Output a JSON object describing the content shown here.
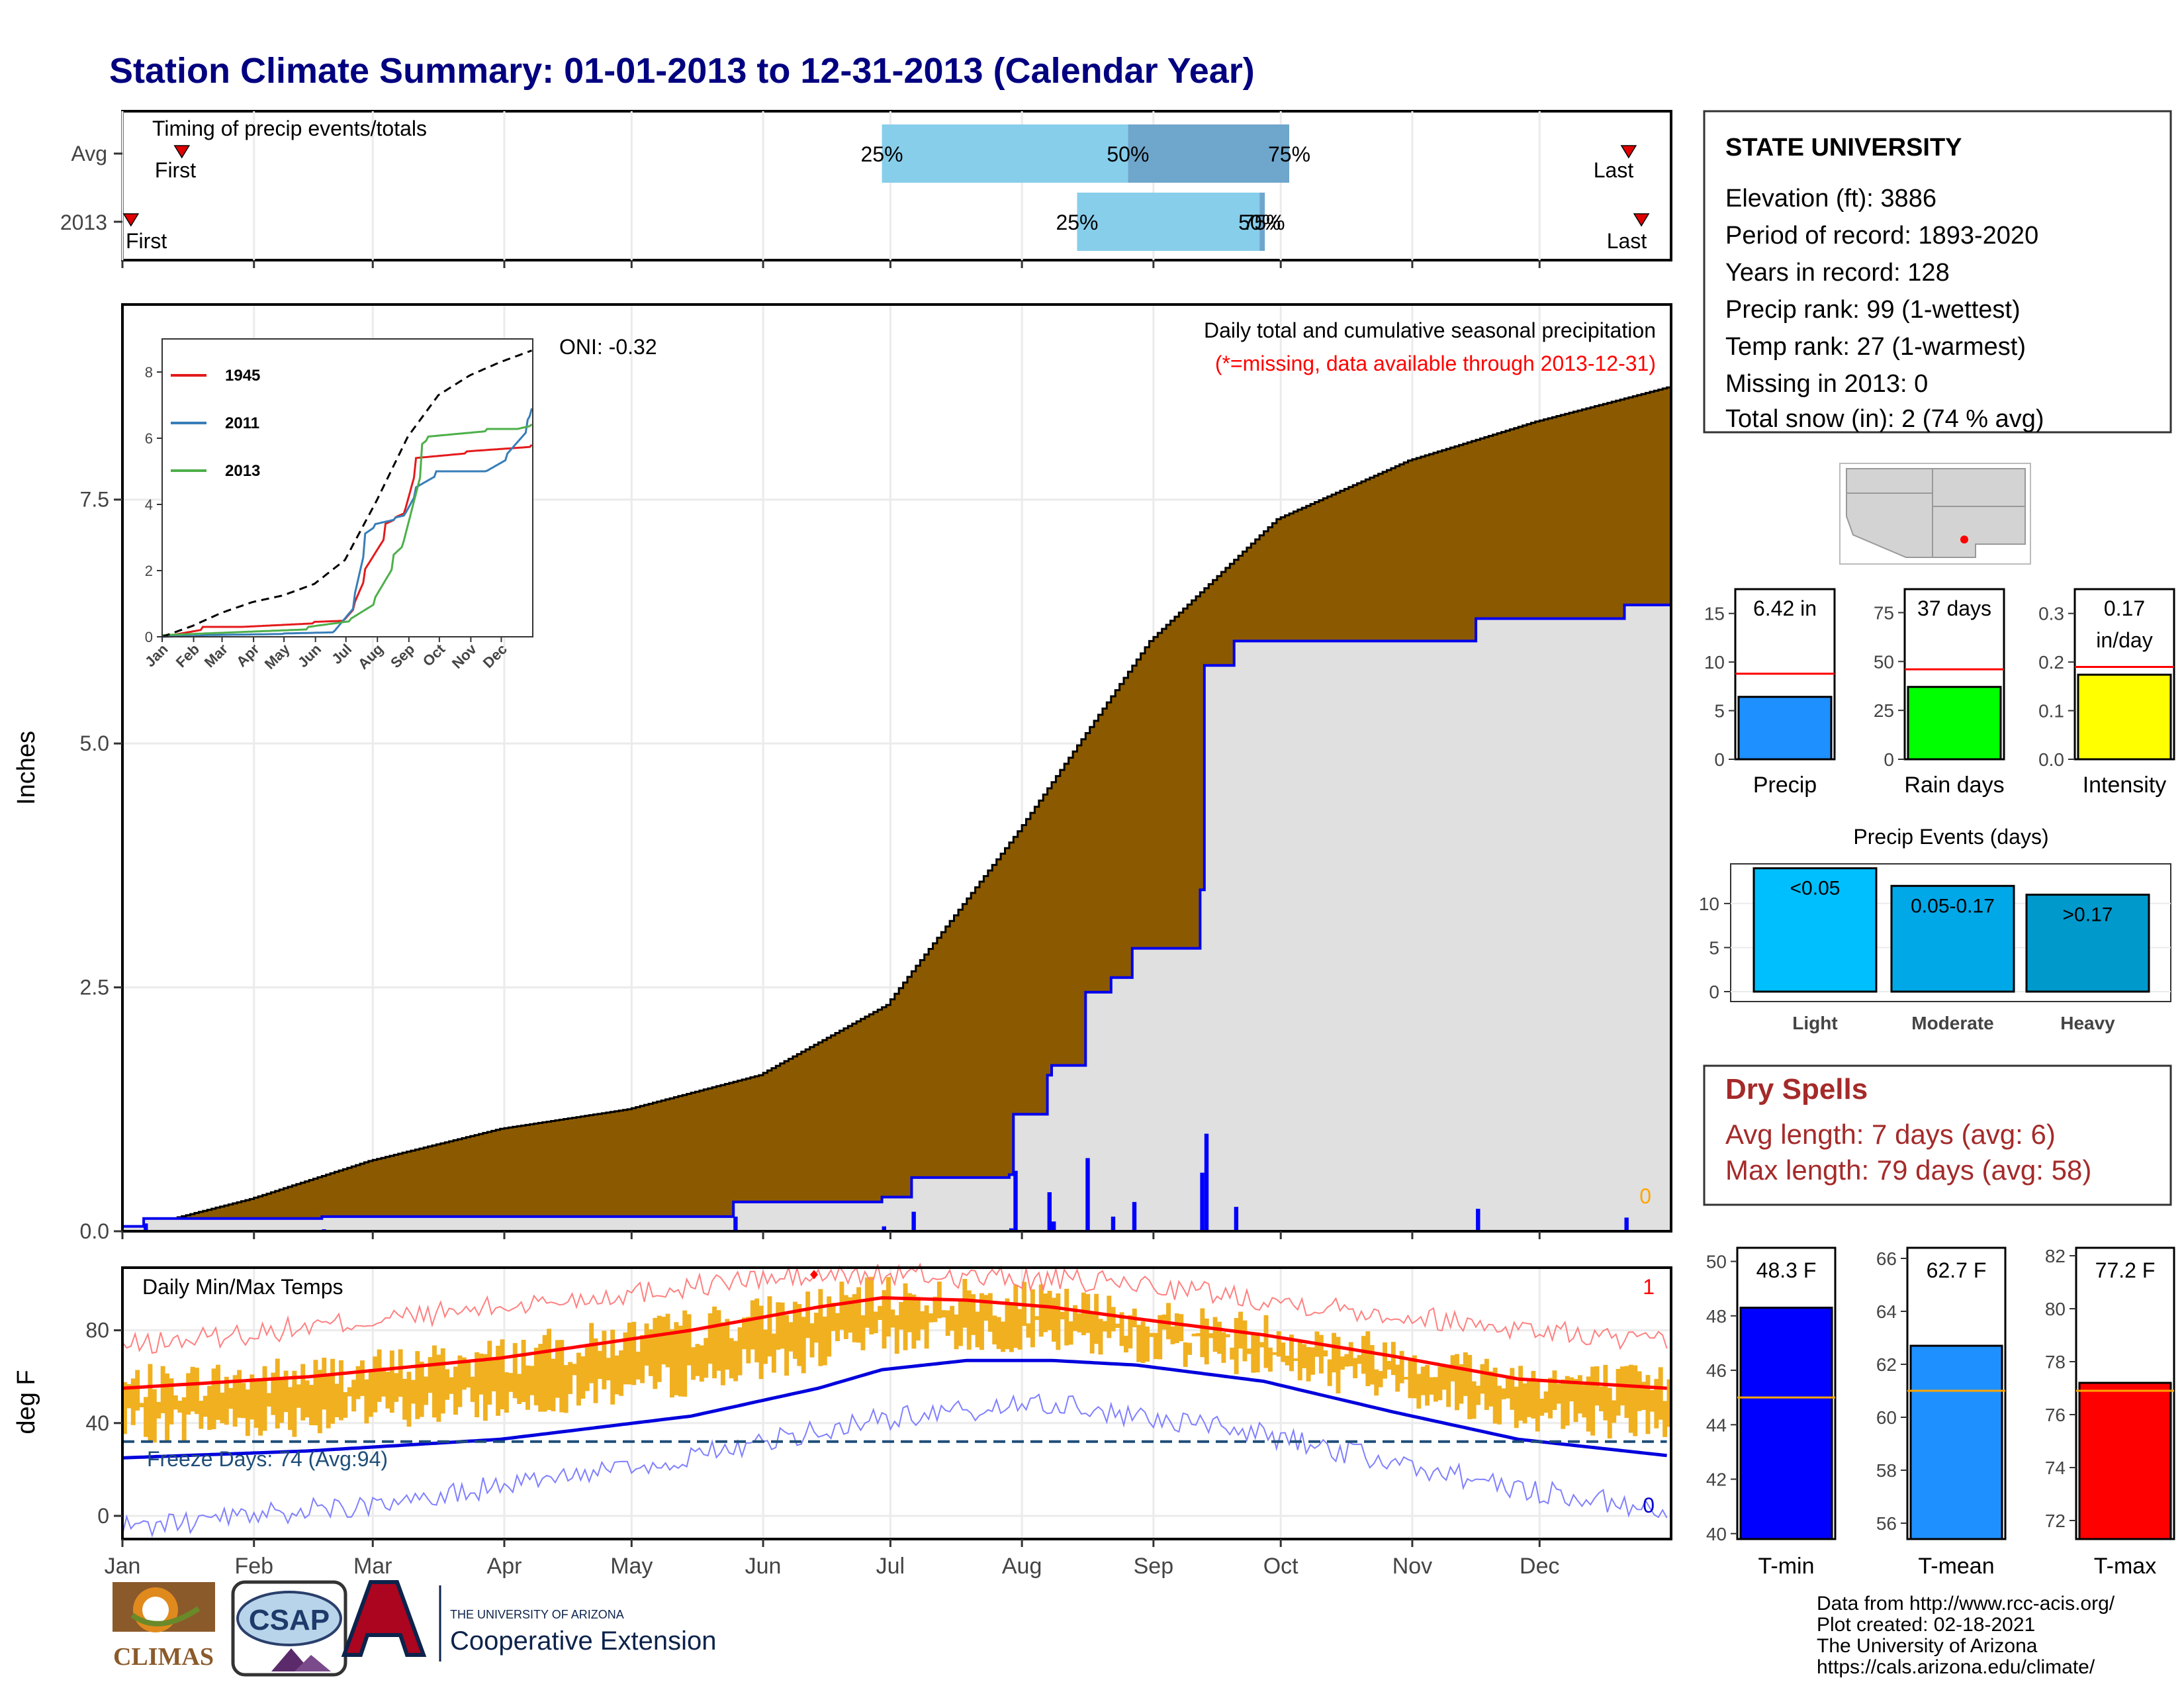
{
  "page": {
    "title": "Station Climate Summary: 01-01-2013 to 12-31-2013 (Calendar Year)",
    "title_color": "#000080"
  },
  "timing_panel": {
    "title": "Timing of precip events/totals",
    "rows": [
      "Avg",
      "2013"
    ],
    "avg": {
      "first_doy": 15,
      "last_doy": 356,
      "p25_doy": 180,
      "p50_doy": 238,
      "p75_doy": 276,
      "first_label": "First",
      "last_label": "Last",
      "labels": [
        "25%",
        "50%",
        "75%"
      ]
    },
    "y2013": {
      "first_doy": 3,
      "last_doy": 359,
      "p25_doy": 226,
      "p50_doy": 269,
      "p75_doy": 270,
      "first_label": "First",
      "last_label": "Last",
      "labels": [
        "25%",
        "50%",
        "75%"
      ]
    },
    "colors": {
      "light": "#87CEEB",
      "dark": "#6fa6cc",
      "marker": "#e00000"
    }
  },
  "precip_panel": {
    "ylabel": "Inches",
    "yticks": [
      "0.0",
      "2.5",
      "5.0",
      "7.5"
    ],
    "ylim": [
      0,
      9.5
    ],
    "oni": "ONI: -0.32",
    "subtitle": "Daily total and cumulative seasonal precipitation",
    "missing_note": "(*=missing, data available through 2013-12-31)",
    "missing_count": "0",
    "colors": {
      "avg_fill": "#8B5A00",
      "current_fill": "#e0e0e0",
      "current_line": "#0000ee",
      "bars": "#0000ff",
      "note": "#ff0000",
      "count": "#ffa500"
    }
  },
  "inset": {
    "yticks": [
      "0",
      "2",
      "4",
      "6",
      "8"
    ],
    "xticks": [
      "Jan",
      "Feb",
      "Mar",
      "Apr",
      "May",
      "Jun",
      "Jul",
      "Aug",
      "Sep",
      "Oct",
      "Nov",
      "Dec"
    ],
    "legend": [
      "1945",
      "2011",
      "2013"
    ],
    "colors": [
      "#e41a1c",
      "#377eb8",
      "#4daf4a"
    ]
  },
  "temp_panel": {
    "ylabel": "deg F",
    "title": "Daily Min/Max Temps",
    "yticks": [
      "0",
      "40",
      "80"
    ],
    "freeze_label": "Freeze Days: 74 (Avg:94)",
    "record_high_count": "1",
    "record_low_count": "0",
    "xticks": [
      "Jan",
      "Feb",
      "Mar",
      "Apr",
      "May",
      "Jun",
      "Jul",
      "Aug",
      "Sep",
      "Oct",
      "Nov",
      "Dec"
    ],
    "colors": {
      "bars": "#f0b020",
      "avg_max": "#ff0000",
      "avg_min": "#0000dd",
      "rec_max": "#ff8080",
      "rec_min": "#8080ff",
      "freeze": "#1f4e79"
    }
  },
  "station_box": {
    "name": "STATE UNIVERSITY",
    "lines": [
      "Elevation (ft): 3886",
      "Period of record: 1893-2020",
      "Years in record: 128",
      "Precip rank: 99 (1-wettest)",
      "Temp rank: 27 (1-warmest)",
      "Missing in 2013: 0",
      "Total snow (in): 2 (74 % avg)"
    ]
  },
  "mini_bars": [
    {
      "label": "Precip",
      "value_text": "6.42 in",
      "value": 6.42,
      "avg": 8.8,
      "ylim": [
        0,
        17.5
      ],
      "yticks": [
        "0",
        "5",
        "10",
        "15"
      ],
      "tickvals": [
        0,
        5,
        10,
        15
      ],
      "color": "#1e90ff"
    },
    {
      "label": "Rain days",
      "value_text": "37 days",
      "value": 37,
      "avg": 46,
      "ylim": [
        0,
        87
      ],
      "yticks": [
        "0",
        "25",
        "50",
        "75"
      ],
      "tickvals": [
        0,
        25,
        50,
        75
      ],
      "color": "#00ff00"
    },
    {
      "label": "Intensity",
      "value_text": "0.17 in/day",
      "value": 0.174,
      "avg": 0.19,
      "ylim": [
        0,
        0.35
      ],
      "yticks": [
        "0.0",
        "0.1",
        "0.2",
        "0.3"
      ],
      "tickvals": [
        0,
        0.1,
        0.2,
        0.3
      ],
      "color": "#ffff00"
    }
  ],
  "precip_events": {
    "title": "Precip Events (days)",
    "categories": [
      "Light",
      "Moderate",
      "Heavy"
    ],
    "labels": [
      "<0.05",
      "0.05-0.17",
      ">0.17"
    ],
    "values": [
      14,
      12,
      11
    ],
    "yticks": [
      "0",
      "5",
      "10"
    ],
    "colors": [
      "#00bfff",
      "#00a8e8",
      "#0099cc"
    ]
  },
  "dry_spells": {
    "title": "Dry Spells",
    "avg_line": "Avg length: 7 days (avg: 6)",
    "max_line": "Max length: 79 days (avg: 58)",
    "color": "#a52a2a"
  },
  "temp_bars": [
    {
      "label": "T-min",
      "value_text": "48.3 F",
      "value": 48.3,
      "avg": 45.0,
      "ylim": [
        39.8,
        50.5
      ],
      "yticks": [
        "40",
        "42",
        "44",
        "46",
        "48",
        "50"
      ],
      "tickvals": [
        40,
        42,
        44,
        46,
        48,
        50
      ],
      "color": "#0000ff"
    },
    {
      "label": "T-mean",
      "value_text": "62.7 F",
      "value": 62.7,
      "avg": 61.0,
      "ylim": [
        55.4,
        66.4
      ],
      "yticks": [
        "56",
        "58",
        "60",
        "62",
        "64",
        "66"
      ],
      "tickvals": [
        56,
        58,
        60,
        62,
        64,
        66
      ],
      "color": "#1e90ff"
    },
    {
      "label": "T-max",
      "value_text": "77.2 F",
      "value": 77.2,
      "avg": 76.9,
      "ylim": [
        71.3,
        82.3
      ],
      "yticks": [
        "72",
        "74",
        "76",
        "78",
        "80",
        "82"
      ],
      "tickvals": [
        72,
        74,
        76,
        78,
        80,
        82
      ],
      "color": "#ff0000"
    }
  ],
  "footer": {
    "lines": [
      "Data from http://www.rcc-acis.org/",
      "Plot created: 02-18-2021",
      "The University of Arizona",
      "https://cals.arizona.edu/climate/"
    ],
    "logo_climas": "CLIMAS",
    "logo_csap": "CSAP",
    "logo_ua_small": "THE UNIVERSITY OF ARIZONA",
    "logo_ua_big": "Cooperative Extension",
    "logo_ua_letter": "A"
  },
  "chart_data": [
    {
      "type": "area",
      "title": "Daily total and cumulative seasonal precipitation",
      "ylabel": "Inches",
      "ylim": [
        0,
        9.5
      ],
      "x_unit": "day of year",
      "series": [
        {
          "name": "avg cumulative",
          "x": [
            1,
            31,
            59,
            90,
            120,
            151,
            181,
            212,
            243,
            273,
            304,
            334,
            365
          ],
          "y": [
            0.0,
            0.33,
            0.72,
            1.05,
            1.25,
            1.6,
            2.32,
            4.1,
            6.05,
            7.3,
            7.9,
            8.3,
            8.65
          ]
        },
        {
          "name": "2013 cumulative",
          "x": [
            1,
            6,
            40,
            48,
            145,
            180,
            187,
            210,
            211,
            219,
            220,
            228,
            234,
            239,
            248,
            255,
            256,
            262,
            263,
            303,
            320,
            351,
            355,
            365
          ],
          "y": [
            0.05,
            0.13,
            0.13,
            0.15,
            0.3,
            0.35,
            0.55,
            0.58,
            1.2,
            1.6,
            1.7,
            2.45,
            2.6,
            2.9,
            2.9,
            3.5,
            5.8,
            5.8,
            6.05,
            6.05,
            6.28,
            6.28,
            6.42,
            6.42
          ]
        }
      ]
    },
    {
      "type": "line",
      "title": "",
      "x_unit": "day of year",
      "ylim": [
        0,
        9
      ],
      "series": [
        {
          "name": "1945",
          "x": [
            1,
            40,
            80,
            150,
            180,
            190,
            200,
            220,
            230,
            240,
            250,
            300,
            365
          ],
          "y": [
            0.0,
            0.3,
            0.3,
            0.45,
            0.5,
            1.0,
            2.0,
            3.4,
            3.6,
            3.8,
            5.4,
            5.6,
            5.8
          ]
        },
        {
          "name": "2011",
          "x": [
            1,
            40,
            120,
            170,
            190,
            200,
            210,
            230,
            240,
            250,
            270,
            320,
            340,
            360,
            365
          ],
          "y": [
            0.0,
            0.05,
            0.1,
            0.15,
            1.2,
            3.1,
            3.4,
            3.6,
            3.7,
            4.5,
            5.0,
            5.0,
            5.5,
            6.5,
            6.9
          ]
        },
        {
          "name": "2013",
          "x": [
            1,
            145,
            187,
            211,
            228,
            239,
            256,
            263,
            320,
            351,
            365
          ],
          "y": [
            0.05,
            0.3,
            0.55,
            1.2,
            2.45,
            2.9,
            5.8,
            6.05,
            6.28,
            6.28,
            6.42
          ]
        },
        {
          "name": "average",
          "x": [
            1,
            31,
            59,
            90,
            120,
            151,
            181,
            212,
            243,
            273,
            304,
            334,
            365
          ],
          "y": [
            0.0,
            0.33,
            0.72,
            1.05,
            1.25,
            1.6,
            2.32,
            4.1,
            6.05,
            7.3,
            7.9,
            8.3,
            8.65
          ]
        }
      ]
    },
    {
      "type": "bar",
      "title": "Daily Min/Max Temps",
      "ylabel": "deg F",
      "ylim": [
        -10,
        107
      ],
      "x_unit": "day of year",
      "series": [
        {
          "name": "avg max",
          "x": [
            1,
            45,
            90,
            135,
            165,
            180,
            200,
            220,
            240,
            270,
            300,
            330,
            365
          ],
          "y": [
            55,
            60,
            68,
            80,
            90,
            94,
            93,
            90,
            85,
            78,
            69,
            59,
            55
          ]
        },
        {
          "name": "avg min",
          "x": [
            1,
            45,
            90,
            135,
            165,
            180,
            200,
            220,
            240,
            270,
            300,
            330,
            365
          ],
          "y": [
            25,
            28,
            33,
            43,
            55,
            63,
            67,
            67,
            65,
            58,
            45,
            33,
            26
          ]
        },
        {
          "name": "record max",
          "x": [
            1,
            90,
            150,
            180,
            200,
            240,
            300,
            365
          ],
          "y": [
            73,
            90,
            102,
            104,
            103,
            100,
            87,
            74
          ]
        },
        {
          "name": "record min",
          "x": [
            1,
            60,
            120,
            180,
            220,
            270,
            330,
            365
          ],
          "y": [
            -5,
            5,
            20,
            42,
            48,
            35,
            12,
            2
          ]
        },
        {
          "name": "freeze line",
          "x": [
            1,
            365
          ],
          "y": [
            32,
            32
          ]
        }
      ]
    },
    {
      "type": "bar",
      "title": "",
      "categories": [
        "Precip",
        "Rain days",
        "Intensity"
      ],
      "values": [
        6.42,
        37,
        0.17
      ]
    },
    {
      "type": "bar",
      "title": "Precip Events (days)",
      "categories": [
        "Light",
        "Moderate",
        "Heavy"
      ],
      "values": [
        14,
        12,
        11
      ]
    },
    {
      "type": "bar",
      "title": "",
      "categories": [
        "T-min",
        "T-mean",
        "T-max"
      ],
      "values": [
        48.3,
        62.7,
        77.2
      ]
    }
  ]
}
